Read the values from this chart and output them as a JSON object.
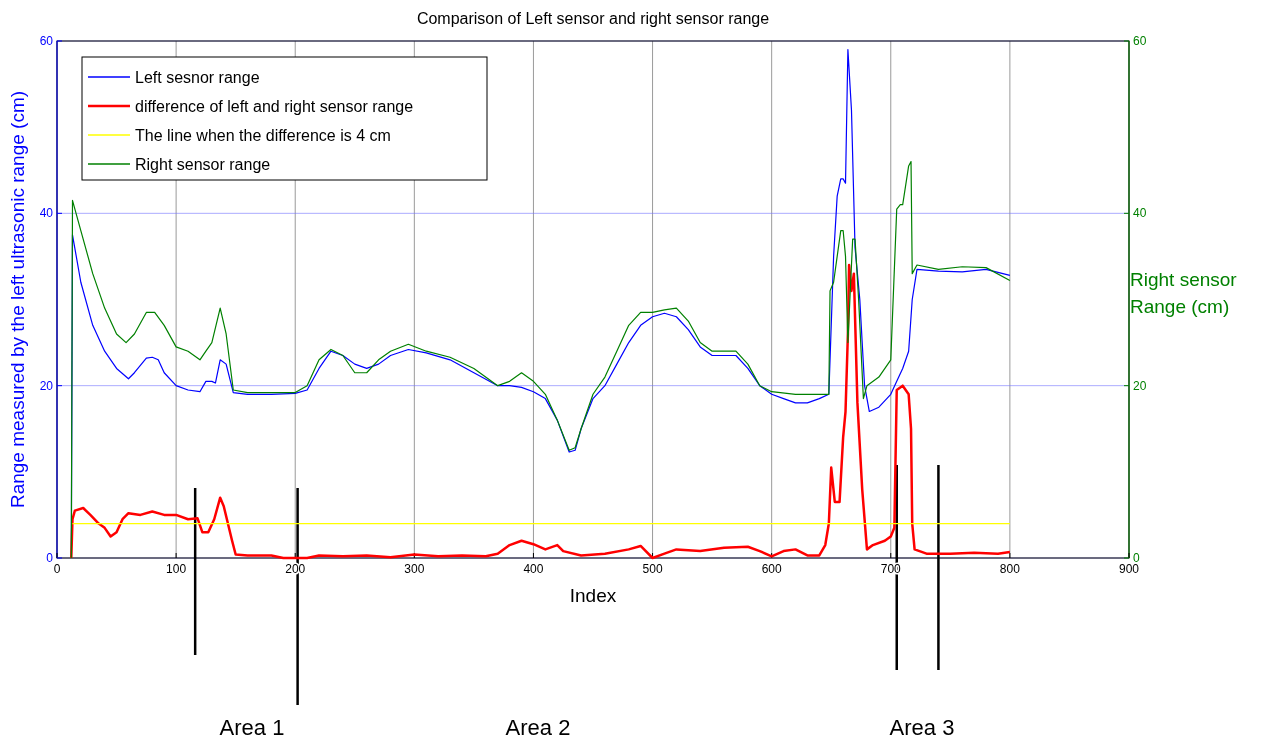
{
  "chart_data": {
    "type": "line",
    "title": "Comparison of Left sensor and right sensor range",
    "xlabel": "Index",
    "ylabel": "Range measured by the left ultrasonic range (cm)",
    "y2label": "Right sensor Range (cm)",
    "xlim": [
      0,
      900
    ],
    "xticks": [
      0,
      100,
      200,
      300,
      400,
      500,
      600,
      700,
      800,
      900
    ],
    "ylim": [
      0,
      60
    ],
    "yticks": [
      0,
      20,
      40,
      60
    ],
    "y2lim": [
      0,
      60
    ],
    "y2ticks": [
      0,
      20,
      40,
      60
    ],
    "grid": true,
    "legend": "top left",
    "annotations": [
      "Area 1",
      "Area 2",
      "Area 3"
    ],
    "ref_lines": [
      {
        "axis": "x",
        "value": 116,
        "color": "#000000"
      },
      {
        "axis": "x",
        "value": 202,
        "color": "#000000"
      },
      {
        "axis": "x",
        "value": 705,
        "color": "#000000"
      },
      {
        "axis": "x",
        "value": 740,
        "color": "#000000"
      }
    ],
    "series": [
      {
        "name": "Left sesnor range",
        "color": "#0000ff",
        "x": [
          12,
          13,
          20,
          30,
          40,
          50,
          60,
          65,
          75,
          80,
          85,
          90,
          100,
          110,
          120,
          125,
          130,
          133,
          137,
          142,
          148,
          160,
          180,
          200,
          210,
          220,
          230,
          240,
          250,
          260,
          270,
          280,
          295,
          310,
          330,
          350,
          370,
          380,
          390,
          400,
          410,
          420,
          430,
          435,
          440,
          450,
          460,
          470,
          480,
          490,
          500,
          510,
          520,
          530,
          540,
          550,
          570,
          580,
          590,
          600,
          610,
          620,
          630,
          640,
          648,
          652,
          655,
          658,
          660,
          662,
          664,
          667,
          670,
          674,
          678,
          682,
          690,
          700,
          705,
          710,
          715,
          718,
          722,
          740,
          760,
          780,
          800
        ],
        "values": [
          0,
          37.5,
          32,
          27,
          24,
          22,
          20.8,
          21.5,
          23.2,
          23.3,
          23,
          21.5,
          20,
          19.5,
          19.3,
          20.5,
          20.5,
          20.3,
          23,
          22.5,
          19.2,
          19,
          19,
          19.1,
          19.5,
          22,
          24,
          23.5,
          22.5,
          22,
          22.5,
          23.5,
          24.2,
          23.8,
          23,
          21.5,
          20,
          20,
          19.8,
          19.3,
          18.5,
          16,
          12.3,
          12.5,
          15,
          18.5,
          20,
          22.5,
          25,
          27,
          28,
          28.4,
          28,
          26.5,
          24.5,
          23.5,
          23.5,
          22,
          20,
          19,
          18.5,
          18,
          18,
          18.5,
          19,
          35,
          42,
          44,
          44,
          43.5,
          59,
          52,
          36,
          30,
          20,
          17,
          17.5,
          19,
          20.5,
          22,
          24,
          30,
          33.5,
          33.3,
          33.2,
          33.5,
          32.8
        ]
      },
      {
        "name": "difference of left and right sensor range",
        "color": "#ff0000",
        "x": [
          12,
          13,
          15,
          22,
          28,
          35,
          40,
          45,
          50,
          55,
          60,
          70,
          80,
          90,
          100,
          110,
          118,
          122,
          127,
          132,
          137,
          140,
          147,
          150,
          160,
          180,
          190,
          210,
          220,
          240,
          260,
          280,
          300,
          320,
          340,
          360,
          370,
          380,
          390,
          400,
          410,
          420,
          425,
          440,
          460,
          480,
          490,
          500,
          510,
          520,
          540,
          560,
          580,
          590,
          600,
          610,
          620,
          630,
          640,
          645,
          648,
          650,
          653,
          657,
          660,
          662,
          664,
          665,
          667,
          669,
          672,
          676,
          680,
          685,
          695,
          700,
          703,
          705,
          710,
          715,
          717,
          718,
          720,
          730,
          750,
          770,
          790,
          800
        ],
        "values": [
          0,
          4.5,
          5.5,
          5.8,
          5,
          4,
          3.5,
          2.5,
          3,
          4.5,
          5.2,
          5,
          5.4,
          5,
          5,
          4.5,
          4.6,
          3,
          3,
          4.5,
          7,
          6,
          2,
          0.4,
          0.3,
          0.3,
          0,
          0,
          0.3,
          0.2,
          0.3,
          0.1,
          0.4,
          0.2,
          0.3,
          0.2,
          0.5,
          1.5,
          2,
          1.6,
          1,
          1.5,
          0.8,
          0.3,
          0.5,
          1,
          1.4,
          0,
          0.5,
          1,
          0.8,
          1.2,
          1.3,
          0.8,
          0.2,
          0.8,
          1,
          0.3,
          0.3,
          1.5,
          4,
          10.5,
          6.5,
          6.5,
          14,
          17,
          26,
          34,
          31,
          33,
          18,
          8,
          1,
          1.5,
          2,
          2.5,
          3.5,
          19.5,
          20,
          19,
          15,
          4,
          1,
          0.5,
          0.5,
          0.6,
          0.5,
          0.7
        ]
      },
      {
        "name": "The line when the difference is 4 cm",
        "color": "#ffff00",
        "x": [
          13,
          800
        ],
        "values": [
          4,
          4
        ]
      },
      {
        "name": "Right sensor range",
        "color": "#008000",
        "axis": "y2",
        "x": [
          12,
          13,
          20,
          30,
          40,
          50,
          58,
          65,
          75,
          82,
          90,
          100,
          110,
          120,
          125,
          130,
          137,
          142,
          148,
          160,
          180,
          200,
          210,
          220,
          230,
          240,
          250,
          260,
          270,
          280,
          295,
          310,
          330,
          350,
          370,
          380,
          390,
          400,
          410,
          420,
          430,
          435,
          440,
          450,
          460,
          470,
          480,
          490,
          500,
          510,
          520,
          530,
          540,
          550,
          570,
          580,
          590,
          600,
          620,
          640,
          648,
          649,
          652,
          655,
          658,
          660,
          662,
          664,
          668,
          670,
          673,
          677,
          680,
          690,
          700,
          705,
          708,
          710,
          715,
          717,
          718,
          722,
          740,
          760,
          780,
          800
        ],
        "values": [
          0,
          41.5,
          38,
          33,
          29,
          26,
          25,
          26,
          28.5,
          28.5,
          27,
          24.5,
          24,
          23,
          24,
          25,
          29,
          26,
          19.5,
          19.2,
          19.2,
          19.2,
          20,
          23,
          24.2,
          23.5,
          21.5,
          21.5,
          23,
          24,
          24.8,
          24,
          23.3,
          22,
          20,
          20.5,
          21.5,
          20.5,
          19,
          16,
          12.5,
          12.8,
          15,
          19,
          21,
          24,
          27,
          28.5,
          28.5,
          28.8,
          29,
          27.5,
          25,
          24,
          24,
          22.5,
          20,
          19.3,
          19,
          19,
          19,
          31,
          32,
          35,
          38,
          38,
          35,
          25,
          37,
          37,
          30,
          18.5,
          20,
          21,
          23,
          40.5,
          41,
          41,
          45.5,
          46,
          33,
          34,
          33.5,
          33.8,
          33.7,
          32.2
        ]
      }
    ]
  }
}
